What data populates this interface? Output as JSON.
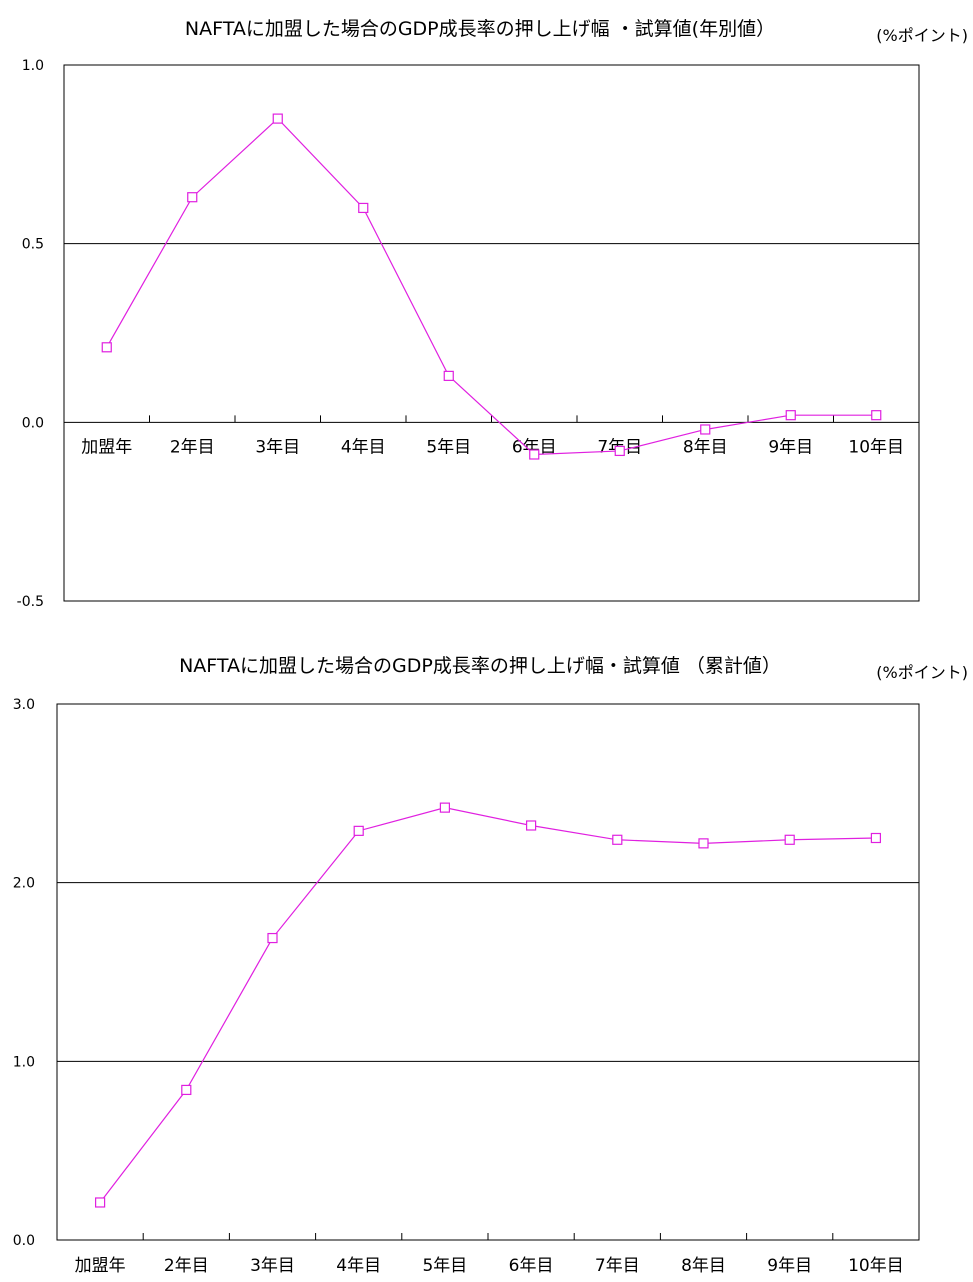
{
  "chart_data": [
    {
      "type": "line",
      "title": "NAFTAに加盟した場合のGDP成長率の押し上げ幅 ・試算値(年別値）",
      "unit": "(%ポイント)",
      "categories": [
        "加盟年",
        "2年目",
        "3年目",
        "4年目",
        "5年目",
        "6年目",
        "7年目",
        "8年目",
        "9年目",
        "10年目"
      ],
      "series": [
        {
          "values": [
            0.21,
            0.63,
            0.85,
            0.6,
            0.13,
            -0.09,
            -0.08,
            -0.02,
            0.02,
            0.02
          ]
        }
      ],
      "ylim": [
        -0.5,
        1.0
      ],
      "yticks": [
        -0.5,
        0.0,
        0.5,
        1.0
      ],
      "ytick_labels": [
        "-0.5",
        "0.0",
        "0.5",
        "1.0"
      ],
      "gridlines": [
        0.5
      ],
      "color": "#e020e0"
    },
    {
      "type": "line",
      "title": "NAFTAに加盟した場合のGDP成長率の押し上げ幅・試算値 （累計値）",
      "unit": "(%ポイント)",
      "categories": [
        "加盟年",
        "2年目",
        "3年目",
        "4年目",
        "5年目",
        "6年目",
        "7年目",
        "8年目",
        "9年目",
        "10年目"
      ],
      "series": [
        {
          "values": [
            0.21,
            0.84,
            1.69,
            2.29,
            2.42,
            2.32,
            2.24,
            2.22,
            2.24,
            2.25
          ]
        }
      ],
      "ylim": [
        0.0,
        3.0
      ],
      "yticks": [
        0.0,
        1.0,
        2.0,
        3.0
      ],
      "ytick_labels": [
        "0.0",
        "1.0",
        "2.0",
        "3.0"
      ],
      "gridlines": [
        1.0,
        2.0
      ],
      "color": "#e020e0"
    }
  ]
}
